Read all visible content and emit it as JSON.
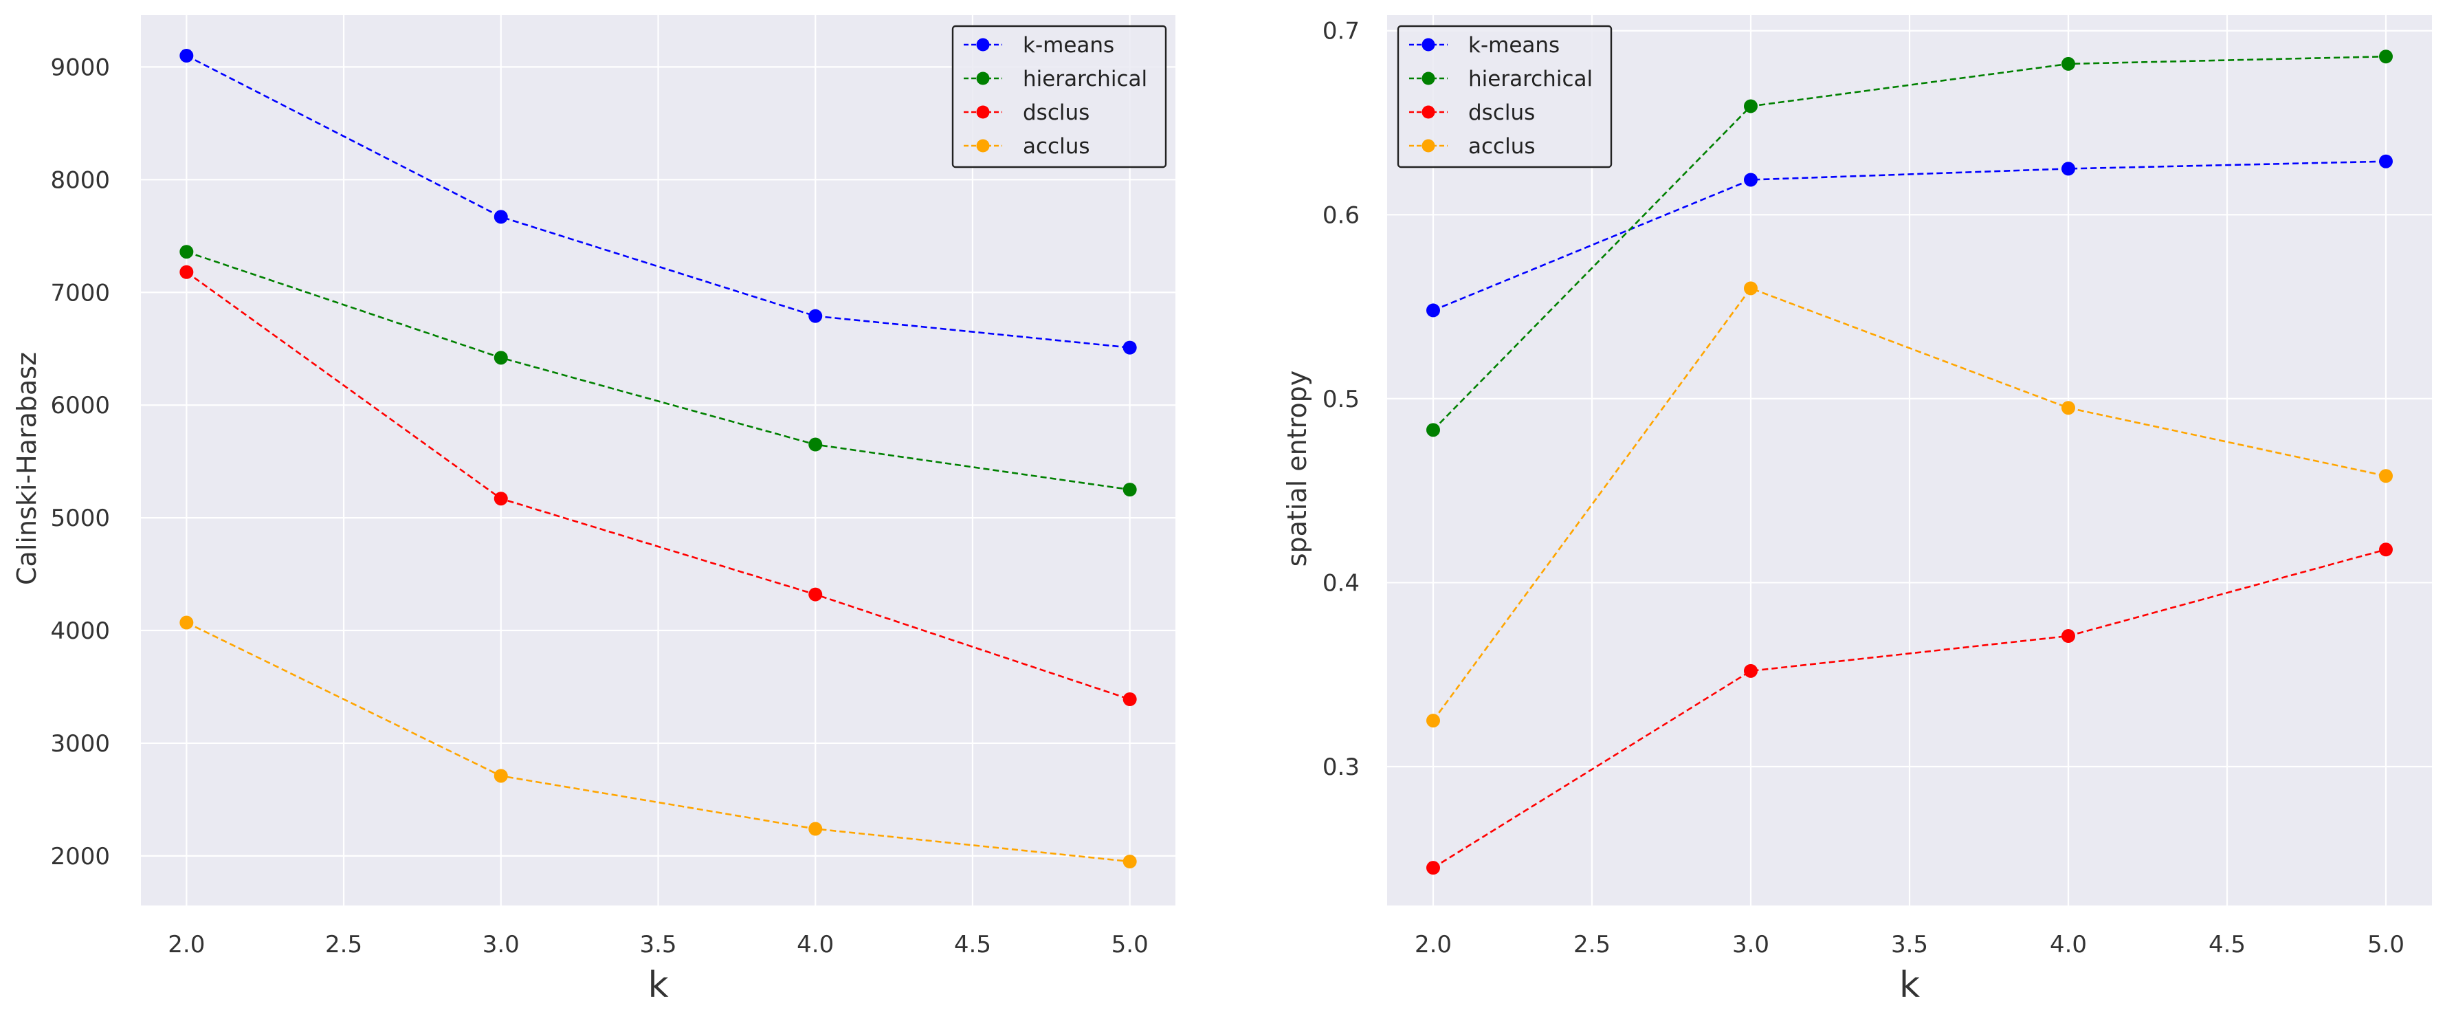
{
  "chart_data": [
    {
      "type": "line",
      "title": "",
      "xlabel": "k",
      "ylabel": "Calinski-Harabasz",
      "x": [
        2.0,
        3.0,
        4.0,
        5.0
      ],
      "xlim": [
        1.855,
        5.145
      ],
      "ylim": [
        1560,
        9460
      ],
      "xticks": [
        2.0,
        2.5,
        3.0,
        3.5,
        4.0,
        4.5,
        5.0
      ],
      "xtick_labels": [
        "2.0",
        "2.5",
        "3.0",
        "3.5",
        "4.0",
        "4.5",
        "5.0"
      ],
      "yticks": [
        2000,
        3000,
        4000,
        5000,
        6000,
        7000,
        8000,
        9000
      ],
      "ytick_labels": [
        "2000",
        "3000",
        "4000",
        "5000",
        "6000",
        "7000",
        "8000",
        "9000"
      ],
      "grid": true,
      "legend_position": "upper-right",
      "series": [
        {
          "name": "k-means",
          "color": "#0000ff",
          "values": [
            9100,
            7670,
            6790,
            6510
          ]
        },
        {
          "name": "hierarchical",
          "color": "#008000",
          "values": [
            7360,
            6420,
            5650,
            5250
          ]
        },
        {
          "name": "dsclus",
          "color": "#ff0000",
          "values": [
            7180,
            5170,
            4320,
            3390
          ]
        },
        {
          "name": "acclus",
          "color": "#ffa500",
          "values": [
            4070,
            2710,
            2240,
            1950
          ]
        }
      ]
    },
    {
      "type": "line",
      "title": "",
      "xlabel": "k",
      "ylabel": "spatial entropy",
      "x": [
        2.0,
        3.0,
        4.0,
        5.0
      ],
      "xlim": [
        1.855,
        5.145
      ],
      "ylim": [
        0.2245,
        0.7085
      ],
      "xticks": [
        2.0,
        2.5,
        3.0,
        3.5,
        4.0,
        4.5,
        5.0
      ],
      "xtick_labels": [
        "2.0",
        "2.5",
        "3.0",
        "3.5",
        "4.0",
        "4.5",
        "5.0"
      ],
      "yticks": [
        0.3,
        0.4,
        0.5,
        0.6,
        0.7
      ],
      "ytick_labels": [
        "0.3",
        "0.4",
        "0.5",
        "0.6",
        "0.7"
      ],
      "grid": true,
      "legend_position": "upper-left",
      "series": [
        {
          "name": "k-means",
          "color": "#0000ff",
          "values": [
            0.548,
            0.619,
            0.625,
            0.629
          ]
        },
        {
          "name": "hierarchical",
          "color": "#008000",
          "values": [
            0.483,
            0.659,
            0.682,
            0.686
          ]
        },
        {
          "name": "dsclus",
          "color": "#ff0000",
          "values": [
            0.245,
            0.352,
            0.371,
            0.418
          ]
        },
        {
          "name": "acclus",
          "color": "#ffa500",
          "values": [
            0.325,
            0.56,
            0.495,
            0.458
          ]
        }
      ]
    }
  ],
  "colors": {
    "plot_background": "#eaeaf2",
    "grid": "#ffffff",
    "text": "#333333"
  }
}
